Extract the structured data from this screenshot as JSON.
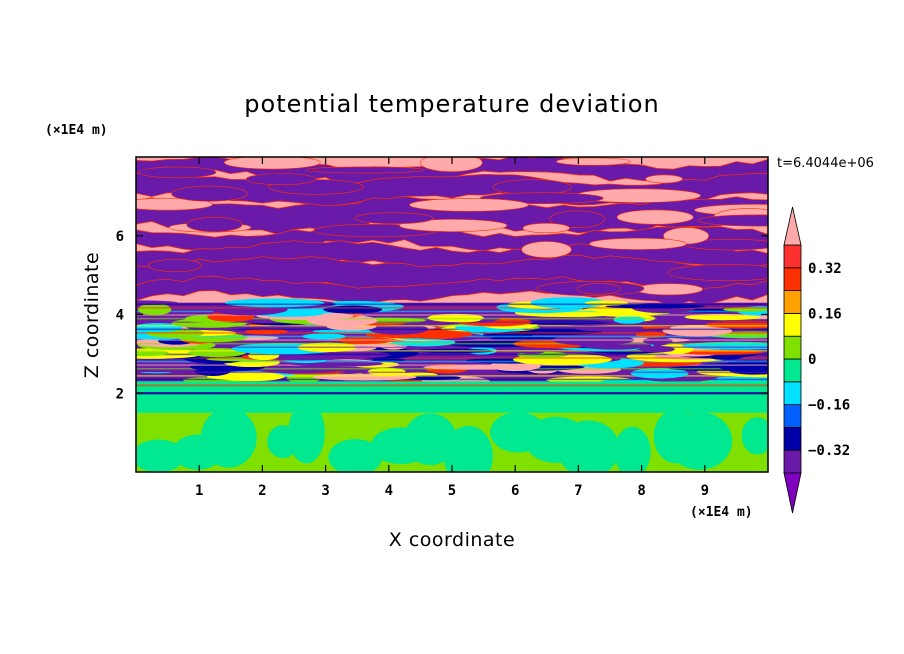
{
  "chart_data": {
    "type": "heatmap",
    "title": "potential temperature deviation",
    "xlabel": "X coordinate",
    "ylabel": "Z coordinate",
    "x_unit": "(×1E4 m)",
    "y_unit": "(×1E4 m)",
    "time_label": "t=6.4044e+06",
    "xlim": [
      0,
      10
    ],
    "ylim": [
      0,
      8
    ],
    "x_ticks": [
      "1",
      "2",
      "3",
      "4",
      "5",
      "6",
      "7",
      "8",
      "9"
    ],
    "y_ticks": [
      "2",
      "4",
      "6"
    ],
    "colorbar": {
      "labels": [
        "0.32",
        "0.16",
        "0",
        "−0.16",
        "−0.32"
      ],
      "label_values": [
        0.32,
        0.16,
        0,
        -0.16,
        -0.32
      ],
      "level_step": 0.08,
      "min_level": -0.4,
      "max_level": 0.4,
      "colors": [
        "#8000c0",
        "#6a1aa8",
        "#0000a8",
        "#0060ff",
        "#00e0ff",
        "#00e890",
        "#80e000",
        "#ffff00",
        "#ffa000",
        "#ff3000",
        "#ff3030",
        "#ffaaaa"
      ]
    },
    "layers": [
      {
        "z_range": [
          0,
          1.5
        ],
        "pattern": "green cells",
        "colors": [
          "#80e000",
          "#00e890"
        ]
      },
      {
        "z_range": [
          1.5,
          2.3
        ],
        "pattern": "near-uniform band",
        "colors": [
          "#00e890"
        ]
      },
      {
        "z_range": [
          2.3,
          4.3
        ],
        "pattern": "turbulent mixed",
        "colors": [
          "#6a1aa8",
          "#0000a8",
          "#00e0ff",
          "#80e000",
          "#ffff00",
          "#ff3000",
          "#ffaaaa"
        ]
      },
      {
        "z_range": [
          4.3,
          8.0
        ],
        "pattern": "alternating layers",
        "colors": [
          "#ffaaaa",
          "#6a1aa8"
        ]
      }
    ]
  }
}
